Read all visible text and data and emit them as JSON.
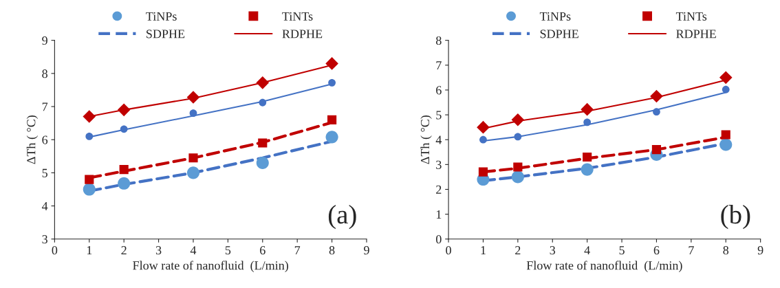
{
  "chart_data": [
    {
      "type": "scatter",
      "xlabel": "Flow rate of nanofluid  (L/min)",
      "ylabel": "ΔTh ( °C)",
      "xlim": [
        0,
        9
      ],
      "xticks": [
        0,
        1,
        2,
        3,
        4,
        5,
        6,
        7,
        8,
        9
      ],
      "ylim": [
        3,
        9
      ],
      "yticks": [
        3,
        4,
        5,
        6,
        7,
        8,
        9
      ],
      "grid": false,
      "legend": "top",
      "annotations": [
        "(a)"
      ],
      "series": [
        {
          "name": "TiNPs",
          "marker": "circle",
          "color": "#5b9bd5",
          "x": [
            1,
            2,
            4,
            6,
            8
          ],
          "values": [
            4.5,
            4.68,
            5.0,
            5.3,
            6.08
          ]
        },
        {
          "name": "TiNTs",
          "marker": "square",
          "color": "#c00000",
          "x": [
            1,
            2,
            4,
            6,
            8
          ],
          "values": [
            4.8,
            5.1,
            5.45,
            5.9,
            6.6
          ]
        },
        {
          "marker": "circle",
          "color": "#4472c4",
          "x": [
            1,
            2,
            4,
            6,
            8
          ],
          "values": [
            6.1,
            6.32,
            6.8,
            7.12,
            7.72
          ]
        },
        {
          "marker": "diamond",
          "color": "#c00000",
          "x": [
            1,
            2,
            4,
            6,
            8
          ],
          "values": [
            6.7,
            6.9,
            7.28,
            7.72,
            8.3
          ]
        },
        {
          "name": "SDPHE",
          "type": "line",
          "line_style": "dashed",
          "color": "#4472c4",
          "x": [
            1,
            2,
            4,
            6,
            8
          ],
          "values": [
            4.45,
            4.65,
            5.0,
            5.45,
            5.95
          ]
        },
        {
          "name": "RDPHE",
          "type": "line",
          "line_style": "solid",
          "color": "#c00000",
          "x": [
            1,
            2,
            4,
            6,
            8
          ],
          "values": [
            6.7,
            6.9,
            7.25,
            7.72,
            8.25
          ]
        },
        {
          "type": "line",
          "line_style": "dashed",
          "color": "#c00000",
          "x": [
            1,
            2,
            4,
            6,
            8
          ],
          "values": [
            4.85,
            5.05,
            5.45,
            5.92,
            6.52
          ]
        },
        {
          "type": "line",
          "line_style": "solid",
          "color": "#4472c4",
          "x": [
            1,
            2,
            4,
            6,
            8
          ],
          "values": [
            6.08,
            6.3,
            6.72,
            7.15,
            7.68
          ]
        }
      ]
    },
    {
      "type": "scatter",
      "xlabel": "Flow rate of nanofluid  (L/min)",
      "ylabel": "ΔTh ( °C)",
      "xlim": [
        0,
        9
      ],
      "xticks": [
        0,
        1,
        2,
        3,
        4,
        5,
        6,
        7,
        8,
        9
      ],
      "ylim": [
        0,
        8
      ],
      "yticks": [
        0,
        1,
        2,
        3,
        4,
        5,
        6,
        7,
        8
      ],
      "grid": false,
      "legend": "top",
      "annotations": [
        "(b)"
      ],
      "series": [
        {
          "name": "TiNPs",
          "marker": "circle",
          "color": "#5b9bd5",
          "x": [
            1,
            2,
            4,
            6,
            8
          ],
          "values": [
            2.4,
            2.5,
            2.8,
            3.4,
            3.8
          ]
        },
        {
          "name": "TiNTs",
          "marker": "square",
          "color": "#c00000",
          "x": [
            1,
            2,
            4,
            6,
            8
          ],
          "values": [
            2.7,
            2.9,
            3.3,
            3.6,
            4.2
          ]
        },
        {
          "marker": "circle",
          "color": "#4472c4",
          "x": [
            1,
            2,
            4,
            6,
            8
          ],
          "values": [
            4.0,
            4.12,
            4.7,
            5.12,
            6.02
          ]
        },
        {
          "marker": "diamond",
          "color": "#c00000",
          "x": [
            1,
            2,
            4,
            6,
            8
          ],
          "values": [
            4.5,
            4.8,
            5.22,
            5.75,
            6.5
          ]
        },
        {
          "name": "SDPHE",
          "type": "line",
          "line_style": "dashed",
          "color": "#4472c4",
          "x": [
            1,
            2,
            4,
            6,
            8
          ],
          "values": [
            2.35,
            2.5,
            2.85,
            3.3,
            3.85
          ]
        },
        {
          "name": "RDPHE",
          "type": "line",
          "line_style": "solid",
          "color": "#c00000",
          "x": [
            1,
            2,
            4,
            6,
            8
          ],
          "values": [
            4.45,
            4.75,
            5.15,
            5.7,
            6.4
          ]
        },
        {
          "type": "line",
          "line_style": "dashed",
          "color": "#c00000",
          "x": [
            1,
            2,
            4,
            6,
            8
          ],
          "values": [
            2.7,
            2.85,
            3.25,
            3.6,
            4.1
          ]
        },
        {
          "type": "line",
          "line_style": "solid",
          "color": "#4472c4",
          "x": [
            1,
            2,
            4,
            6,
            8
          ],
          "values": [
            3.95,
            4.12,
            4.6,
            5.2,
            5.9
          ]
        }
      ]
    }
  ]
}
